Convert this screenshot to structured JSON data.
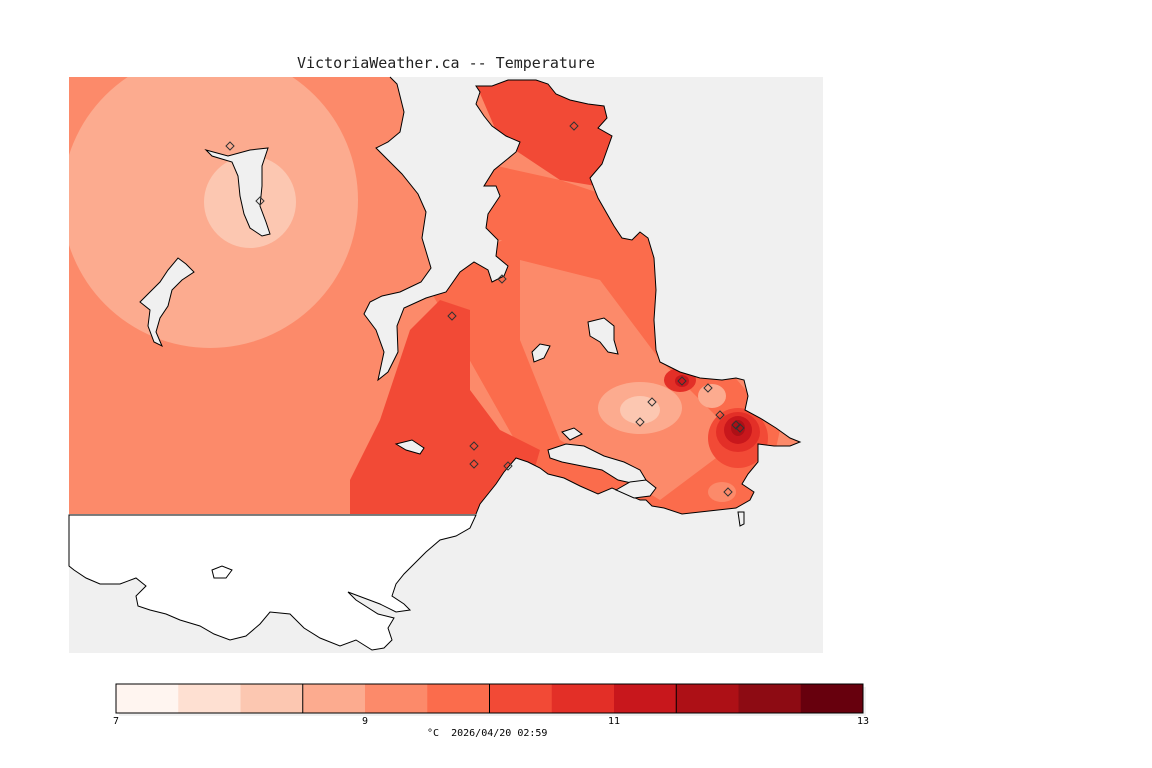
{
  "title": "VictoriaWeather.ca -- Temperature",
  "colorbar": {
    "ticks": [
      "7",
      "9",
      "11",
      "13"
    ],
    "range": [
      7,
      13
    ],
    "colors": [
      "#fff5f0",
      "#fee0d2",
      "#fcc7b1",
      "#fcab8f",
      "#fc8a6a",
      "#fb6c4c",
      "#f24a36",
      "#e32f27",
      "#c8171c",
      "#ad1016",
      "#8d0b13",
      "#67000d"
    ]
  },
  "footer": {
    "unit": "°C",
    "timestamp": "2026/04/20 02:59"
  },
  "colors": {
    "water": "#f0f0f0",
    "uncovered_land": "#ffffff",
    "coastline": "#000000"
  }
}
